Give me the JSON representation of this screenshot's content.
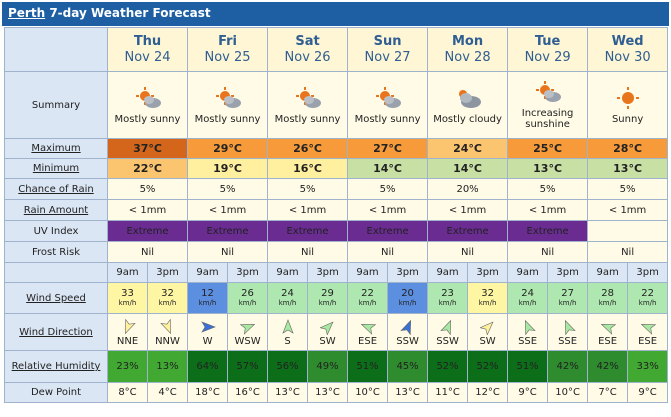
{
  "title": {
    "place": "Perth",
    "rest": " 7-day Weather Forecast"
  },
  "labels": {
    "summary": "Summary",
    "maximum": "Maximum",
    "minimum": "Minimum",
    "chance": "Chance of Rain",
    "rain": "Rain Amount",
    "uv": "UV Index",
    "frost": "Frost Risk",
    "wind_speed": "Wind Speed",
    "wind_dir": "Wind Direction",
    "humidity": "Relative Humidity",
    "dew": "Dew Point"
  },
  "days": [
    {
      "name": "Thu",
      "date": "Nov 24",
      "summary": "Mostly sunny",
      "icon": "mostly-sunny",
      "max": "37°C",
      "min": "22°C",
      "chance": "5%",
      "rain": "< 1mm",
      "uv": "Extreme",
      "frost": "Nil"
    },
    {
      "name": "Fri",
      "date": "Nov 25",
      "summary": "Mostly sunny",
      "icon": "mostly-sunny",
      "max": "29°C",
      "min": "19°C",
      "chance": "5%",
      "rain": "< 1mm",
      "uv": "Extreme",
      "frost": "Nil"
    },
    {
      "name": "Sat",
      "date": "Nov 26",
      "summary": "Mostly sunny",
      "icon": "mostly-sunny",
      "max": "26°C",
      "min": "16°C",
      "chance": "5%",
      "rain": "< 1mm",
      "uv": "Extreme",
      "frost": "Nil"
    },
    {
      "name": "Sun",
      "date": "Nov 27",
      "summary": "Mostly sunny",
      "icon": "mostly-sunny",
      "max": "27°C",
      "min": "14°C",
      "chance": "5%",
      "rain": "< 1mm",
      "uv": "Extreme",
      "frost": "Nil"
    },
    {
      "name": "Mon",
      "date": "Nov 28",
      "summary": "Mostly cloudy",
      "icon": "mostly-cloudy",
      "max": "24°C",
      "min": "14°C",
      "chance": "20%",
      "rain": "< 1mm",
      "uv": "Extreme",
      "frost": "Nil"
    },
    {
      "name": "Tue",
      "date": "Nov 29",
      "summary": "Increasing sunshine",
      "icon": "mostly-sunny",
      "max": "25°C",
      "min": "13°C",
      "chance": "5%",
      "rain": "< 1mm",
      "uv": "Extreme",
      "frost": "Nil"
    },
    {
      "name": "Wed",
      "date": "Nov 30",
      "summary": "Sunny",
      "icon": "sunny",
      "max": "28°C",
      "min": "13°C",
      "chance": "5%",
      "rain": "< 1mm",
      "uv": "",
      "frost": "Nil"
    }
  ],
  "times": [
    "9am",
    "3pm",
    "9am",
    "3pm",
    "9am",
    "3pm",
    "9am",
    "3pm",
    "9am",
    "3pm",
    "9am",
    "3pm",
    "9am",
    "3pm"
  ],
  "slots": [
    {
      "speed": "33",
      "dir": "NNE",
      "hum": "23%",
      "dew": "8°C"
    },
    {
      "speed": "32",
      "dir": "NNW",
      "hum": "13%",
      "dew": "4°C"
    },
    {
      "speed": "12",
      "dir": "W",
      "hum": "64%",
      "dew": "18°C"
    },
    {
      "speed": "26",
      "dir": "WSW",
      "hum": "57%",
      "dew": "16°C"
    },
    {
      "speed": "24",
      "dir": "S",
      "hum": "56%",
      "dew": "13°C"
    },
    {
      "speed": "29",
      "dir": "SW",
      "hum": "49%",
      "dew": "13°C"
    },
    {
      "speed": "22",
      "dir": "ESE",
      "hum": "51%",
      "dew": "10°C"
    },
    {
      "speed": "20",
      "dir": "SSW",
      "hum": "45%",
      "dew": "13°C"
    },
    {
      "speed": "23",
      "dir": "SSW",
      "hum": "52%",
      "dew": "11°C"
    },
    {
      "speed": "32",
      "dir": "SW",
      "hum": "52%",
      "dew": "12°C"
    },
    {
      "speed": "24",
      "dir": "SSE",
      "hum": "51%",
      "dew": "9°C"
    },
    {
      "speed": "27",
      "dir": "SSE",
      "hum": "42%",
      "dew": "10°C"
    },
    {
      "speed": "28",
      "dir": "ESE",
      "hum": "42%",
      "dew": "7°C"
    },
    {
      "speed": "22",
      "dir": "ESE",
      "hum": "33%",
      "dew": "9°C"
    }
  ],
  "speed_unit": "km/h",
  "colors": {
    "title_bar": "#1e5fa3",
    "label_bg": "#dbe6f4",
    "uv_extreme": "#6a2c91",
    "max": [
      "#d4661c",
      "#f79a3a",
      "#f79a3a",
      "#f79a3a",
      "#fbc46e",
      "#f79a3a",
      "#f79a3a"
    ],
    "min": [
      "#fbc46e",
      "#fff0a0",
      "#fff0a0",
      "#c8e0a4",
      "#c8e0a4",
      "#c8e0a4",
      "#c8e0a4"
    ],
    "speed": [
      "#fff6a3",
      "#fff6a3",
      "#5c8fe0",
      "#aee8b0",
      "#aee8b0",
      "#aee8b0",
      "#aee8b0",
      "#5c8fe0",
      "#aee8b0",
      "#fff6a3",
      "#aee8b0",
      "#aee8b0",
      "#aee8b0",
      "#aee8b0"
    ],
    "hum": [
      "#41a832",
      "#41a832",
      "#0d6e1a",
      "#0d6e1a",
      "#0d6e1a",
      "#2e8b2e",
      "#0d6e1a",
      "#2e8b2e",
      "#0d6e1a",
      "#0d6e1a",
      "#0d6e1a",
      "#2e8b2e",
      "#2e8b2e",
      "#41a832"
    ],
    "arrow": [
      "#fff29e",
      "#fff29e",
      "#3a6fd6",
      "#a8e8a0",
      "#a8e8a0",
      "#a8e8a0",
      "#a8e8a0",
      "#3a6fd6",
      "#a8e8a0",
      "#fff29e",
      "#a8e8a0",
      "#a8e8a0",
      "#a8e8a0",
      "#a8e8a0"
    ]
  }
}
